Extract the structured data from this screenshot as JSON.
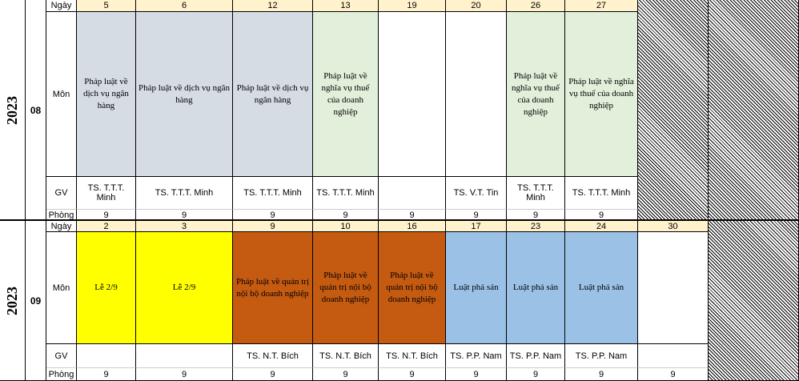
{
  "row_labels": {
    "day": "Ngày",
    "subject": "Môn",
    "teacher": "GV",
    "room": "Phòng"
  },
  "colors": {
    "gray": "#d6dce4",
    "green": "#e2efda",
    "yellow": "#ffff00",
    "orange": "#c55a11",
    "blue": "#9bc2e6",
    "header": "#fff2cc",
    "white": "#ffffff"
  },
  "blocks": [
    {
      "year": "2023",
      "month": "08",
      "days": [
        {
          "day": "5",
          "subject": "Pháp luật về dịch vụ ngân hàng",
          "teacher": "TS. T.T.T. Minh",
          "room": "9",
          "color": "gray"
        },
        {
          "day": "6",
          "subject": "Pháp luật về dịch vụ ngân hàng",
          "teacher": "TS. T.T.T. Minh",
          "room": "9",
          "color": "gray"
        },
        {
          "day": "12",
          "subject": "Pháp luật về dịch vụ ngân hàng",
          "teacher": "TS. T.T.T. Minh",
          "room": "9",
          "color": "gray"
        },
        {
          "day": "13",
          "subject": "Pháp luật về nghĩa vụ thuế của doanh nghiệp",
          "teacher": "TS. T.T.T. Minh",
          "room": "9",
          "color": "green"
        },
        {
          "day": "19",
          "subject": "",
          "teacher": "",
          "room": "9",
          "color": "white"
        },
        {
          "day": "20",
          "subject": "",
          "teacher": "TS. V.T. Tin",
          "room": "9",
          "color": "white"
        },
        {
          "day": "26",
          "subject": "Pháp luật về nghĩa vụ thuế của doanh nghiệp",
          "teacher": "TS. T.T.T. Minh",
          "room": "9",
          "color": "green"
        },
        {
          "day": "27",
          "subject": "Pháp luật về nghĩa vụ thuế của doanh nghiệp",
          "teacher": "TS. T.T.T. Minh",
          "room": "9",
          "color": "green"
        }
      ]
    },
    {
      "year": "2023",
      "month": "09",
      "days": [
        {
          "day": "2",
          "subject": "Lễ 2/9",
          "teacher": "",
          "room": "9",
          "color": "yellow"
        },
        {
          "day": "3",
          "subject": "Lễ 2/9",
          "teacher": "",
          "room": "9",
          "color": "yellow"
        },
        {
          "day": "9",
          "subject": "Pháp luật về quản trị nội bộ doanh nghiệp",
          "teacher": "TS. N.T.  Bích",
          "room": "9",
          "color": "orange"
        },
        {
          "day": "10",
          "subject": "Pháp luật về quản trị nội bộ doanh nghiệp",
          "teacher": "TS. N.T.  Bích",
          "room": "9",
          "color": "orange"
        },
        {
          "day": "16",
          "subject": "Pháp luật về quản trị nội bộ doanh nghiệp",
          "teacher": "TS. N.T.  Bích",
          "room": "9",
          "color": "orange"
        },
        {
          "day": "17",
          "subject": "Luật phá sản",
          "teacher": "TS. P.P. Nam",
          "room": "9",
          "color": "blue"
        },
        {
          "day": "23",
          "subject": "Luật phá sản",
          "teacher": "TS. P.P. Nam",
          "room": "9",
          "color": "blue"
        },
        {
          "day": "24",
          "subject": "Luật phá sản",
          "teacher": "TS. P.P. Nam",
          "room": "9",
          "color": "blue"
        },
        {
          "day": "30",
          "subject": "",
          "teacher": "",
          "room": "9",
          "color": "white"
        }
      ]
    }
  ]
}
